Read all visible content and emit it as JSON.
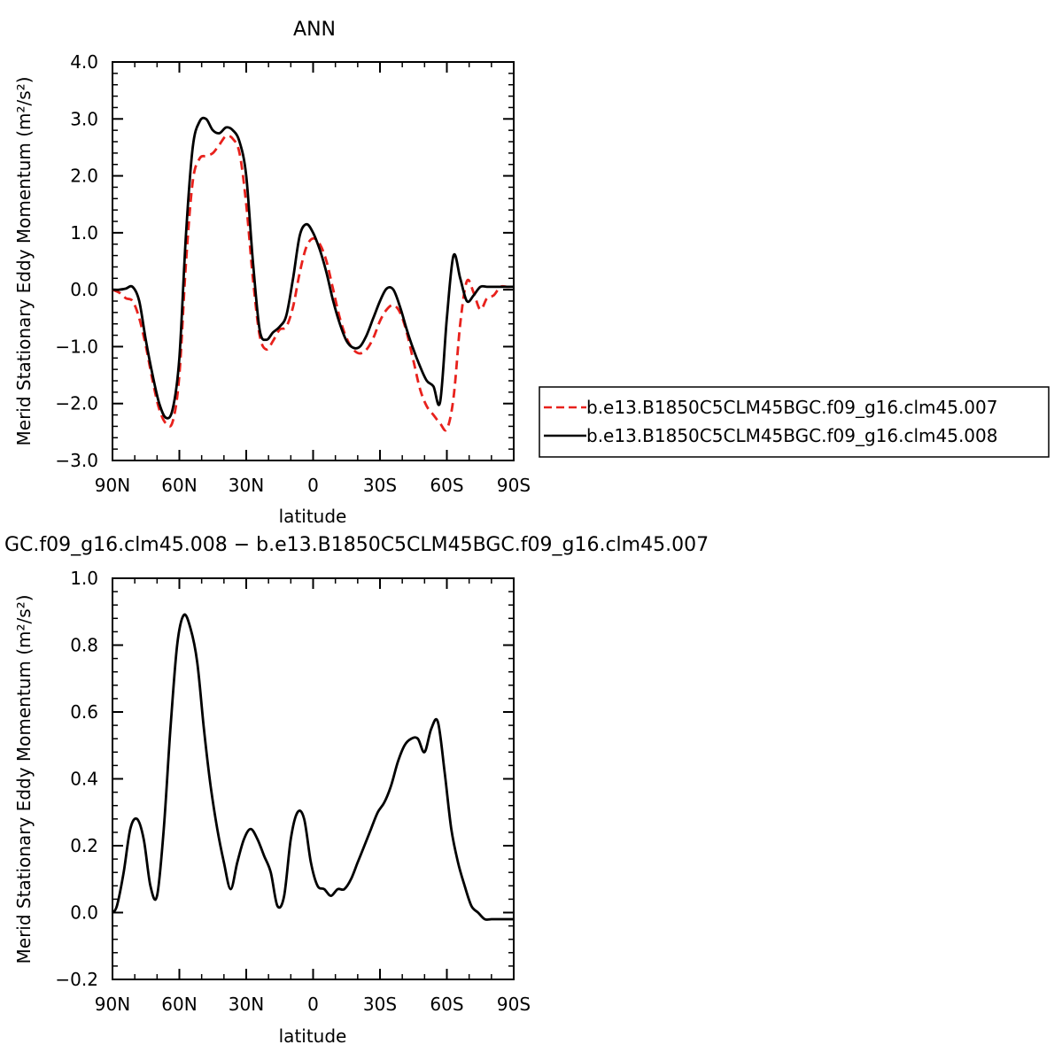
{
  "figure": {
    "top_title": "ANN",
    "bottom_title": "GC.f09_g16.clm45.008 − b.e13.B1850C5CLM45BGC.f09_g16.clm45.007"
  },
  "colors": {
    "series_007": "#e8211c",
    "series_008": "#000000",
    "axis": "#000000"
  },
  "chart_data": [
    {
      "type": "line",
      "title": "ANN",
      "xlabel": "latitude",
      "ylabel": "Merid Stationary Eddy Momentum (m²/s²)",
      "xlim": [
        90,
        -90
      ],
      "ylim": [
        -3.0,
        4.0
      ],
      "xticks": [
        90,
        60,
        30,
        0,
        -30,
        -60,
        -90
      ],
      "xtick_labels": [
        "90N",
        "60N",
        "30N",
        "0",
        "30S",
        "60S",
        "90S"
      ],
      "yticks": [
        -3.0,
        -2.0,
        -1.0,
        0.0,
        1.0,
        2.0,
        3.0,
        4.0
      ],
      "ytick_labels": [
        "−3.0",
        "−2.0",
        "−1.0",
        "0.0",
        "1.0",
        "2.0",
        "3.0",
        "4.0"
      ],
      "legend": "right",
      "series": [
        {
          "name": "b.e13.B1850C5CLM45BGC.f09_g16.clm45.007",
          "style": "dashed",
          "color": "#e8211c",
          "x": [
            90,
            87,
            84,
            81,
            78,
            75,
            72,
            69,
            66,
            63,
            60,
            57,
            54,
            51,
            48,
            45,
            42,
            39,
            36,
            33,
            30,
            27,
            24,
            21,
            18,
            15,
            12,
            9,
            6,
            3,
            0,
            -3,
            -6,
            -9,
            -12,
            -15,
            -18,
            -21,
            -24,
            -27,
            -30,
            -33,
            -36,
            -39,
            -42,
            -45,
            -48,
            -51,
            -54,
            -57,
            -60,
            -63,
            -66,
            -69,
            -72,
            -75,
            -78,
            -81,
            -84,
            -87,
            -90
          ],
          "y": [
            0.0,
            -0.05,
            -0.15,
            -0.2,
            -0.5,
            -1.0,
            -1.6,
            -2.1,
            -2.35,
            -2.32,
            -1.5,
            0.5,
            1.9,
            2.3,
            2.35,
            2.4,
            2.55,
            2.7,
            2.65,
            2.4,
            1.5,
            0.2,
            -0.8,
            -1.05,
            -0.9,
            -0.7,
            -0.65,
            -0.3,
            0.3,
            0.75,
            0.9,
            0.8,
            0.5,
            0.0,
            -0.5,
            -0.85,
            -1.05,
            -1.12,
            -1.05,
            -0.85,
            -0.55,
            -0.35,
            -0.27,
            -0.4,
            -0.75,
            -1.25,
            -1.75,
            -2.05,
            -2.2,
            -2.35,
            -2.45,
            -1.9,
            -0.6,
            0.15,
            -0.05,
            -0.35,
            -0.15,
            -0.1,
            0.05,
            0.05,
            0.05
          ]
        },
        {
          "name": "b.e13.B1850C5CLM45BGC.f09_g16.clm45.008",
          "style": "solid",
          "color": "#000000",
          "x": [
            90,
            87,
            84,
            81,
            78,
            75,
            72,
            69,
            66,
            63,
            60,
            57,
            54,
            51,
            48,
            45,
            42,
            39,
            36,
            33,
            30,
            27,
            24,
            21,
            18,
            15,
            12,
            9,
            6,
            3,
            0,
            -3,
            -6,
            -9,
            -12,
            -15,
            -18,
            -21,
            -24,
            -27,
            -30,
            -33,
            -36,
            -39,
            -42,
            -45,
            -48,
            -51,
            -54,
            -57,
            -60,
            -63,
            -66,
            -69,
            -72,
            -75,
            -78,
            -81,
            -84,
            -87,
            -90
          ],
          "y": [
            0.0,
            0.0,
            0.02,
            0.05,
            -0.2,
            -0.9,
            -1.5,
            -2.0,
            -2.25,
            -2.1,
            -1.2,
            1.0,
            2.5,
            2.95,
            3.0,
            2.8,
            2.75,
            2.85,
            2.8,
            2.6,
            2.0,
            0.5,
            -0.7,
            -0.88,
            -0.75,
            -0.65,
            -0.45,
            0.2,
            0.95,
            1.15,
            1.0,
            0.7,
            0.3,
            -0.2,
            -0.6,
            -0.9,
            -1.02,
            -1.0,
            -0.8,
            -0.5,
            -0.2,
            0.02,
            0.0,
            -0.3,
            -0.7,
            -1.05,
            -1.35,
            -1.6,
            -1.7,
            -1.97,
            -0.5,
            0.6,
            0.2,
            -0.2,
            -0.1,
            0.05,
            0.05,
            0.05,
            0.05,
            0.05,
            0.05
          ]
        }
      ]
    },
    {
      "type": "line",
      "title": "GC.f09_g16.clm45.008 − b.e13.B1850C5CLM45BGC.f09_g16.clm45.007",
      "xlabel": "latitude",
      "ylabel": "Merid Stationary Eddy Momentum (m²/s²)",
      "xlim": [
        90,
        -90
      ],
      "ylim": [
        -0.2,
        1.0
      ],
      "xticks": [
        90,
        60,
        30,
        0,
        -30,
        -60,
        -90
      ],
      "xtick_labels": [
        "90N",
        "60N",
        "30N",
        "0",
        "30S",
        "60S",
        "90S"
      ],
      "yticks": [
        -0.2,
        0.0,
        0.2,
        0.4,
        0.6,
        0.8,
        1.0
      ],
      "ytick_labels": [
        "−0.2",
        "0.0",
        "0.2",
        "0.4",
        "0.6",
        "0.8",
        "1.0"
      ],
      "series": [
        {
          "style": "solid",
          "color": "#000000",
          "x": [
            90,
            88,
            85,
            82,
            79,
            76,
            73,
            70,
            67,
            64,
            61,
            58,
            55,
            52,
            49,
            46,
            43,
            40,
            37,
            34,
            31,
            28,
            25,
            22,
            19,
            16,
            13,
            10,
            7,
            4,
            1,
            -2,
            -5,
            -8,
            -11,
            -14,
            -17,
            -20,
            -23,
            -26,
            -29,
            -32,
            -35,
            -38,
            -41,
            -44,
            -47,
            -50,
            -53,
            -56,
            -59,
            -62,
            -65,
            -68,
            -71,
            -74,
            -77,
            -80,
            -83,
            -86,
            -89,
            -90
          ],
          "y": [
            0.0,
            0.02,
            0.12,
            0.25,
            0.28,
            0.22,
            0.08,
            0.05,
            0.25,
            0.55,
            0.8,
            0.89,
            0.85,
            0.75,
            0.55,
            0.38,
            0.25,
            0.15,
            0.07,
            0.15,
            0.22,
            0.25,
            0.22,
            0.17,
            0.12,
            0.02,
            0.05,
            0.22,
            0.3,
            0.28,
            0.15,
            0.08,
            0.07,
            0.05,
            0.07,
            0.07,
            0.1,
            0.15,
            0.2,
            0.25,
            0.3,
            0.33,
            0.38,
            0.45,
            0.5,
            0.52,
            0.52,
            0.48,
            0.55,
            0.57,
            0.42,
            0.25,
            0.15,
            0.08,
            0.02,
            0.0,
            -0.02,
            -0.02,
            -0.02,
            -0.02,
            -0.02,
            -0.02
          ]
        }
      ]
    }
  ]
}
